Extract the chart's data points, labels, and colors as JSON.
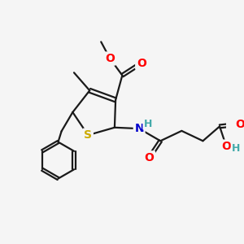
{
  "bg_color": "#f5f5f5",
  "bond_color": "#1a1a1a",
  "bond_width": 1.6,
  "atom_colors": {
    "O": "#ff0000",
    "N": "#0000cc",
    "S": "#ccaa00",
    "H_label": "#44aaaa",
    "C": "#1a1a1a"
  },
  "font_size_atom": 10
}
